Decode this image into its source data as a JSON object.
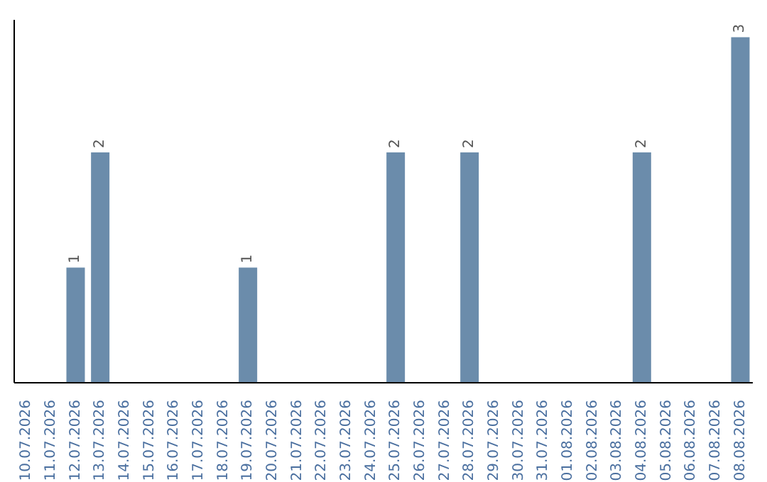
{
  "chart_data": {
    "type": "bar",
    "categories": [
      "10.07.2026",
      "11.07.2026",
      "12.07.2026",
      "13.07.2026",
      "14.07.2026",
      "15.07.2026",
      "16.07.2026",
      "17.07.2026",
      "18.07.2026",
      "19.07.2026",
      "20.07.2026",
      "21.07.2026",
      "22.07.2026",
      "23.07.2026",
      "24.07.2026",
      "25.07.2026",
      "26.07.2026",
      "27.07.2026",
      "28.07.2026",
      "29.07.2026",
      "30.07.2026",
      "31.07.2026",
      "01.08.2026",
      "02.08.2026",
      "03.08.2026",
      "04.08.2026",
      "05.08.2026",
      "06.08.2026",
      "07.08.2026",
      "08.08.2026"
    ],
    "values": [
      0,
      0,
      1,
      2,
      0,
      0,
      0,
      0,
      0,
      1,
      0,
      0,
      0,
      0,
      0,
      2,
      0,
      0,
      2,
      0,
      0,
      0,
      0,
      0,
      0,
      2,
      0,
      0,
      0,
      3
    ],
    "value_labels": [
      null,
      null,
      "1",
      "2",
      null,
      null,
      null,
      null,
      null,
      "1",
      null,
      null,
      null,
      null,
      null,
      "2",
      null,
      null,
      "2",
      null,
      null,
      null,
      null,
      null,
      null,
      "2",
      null,
      null,
      null,
      "3"
    ],
    "color": "#6b8cab"
  }
}
